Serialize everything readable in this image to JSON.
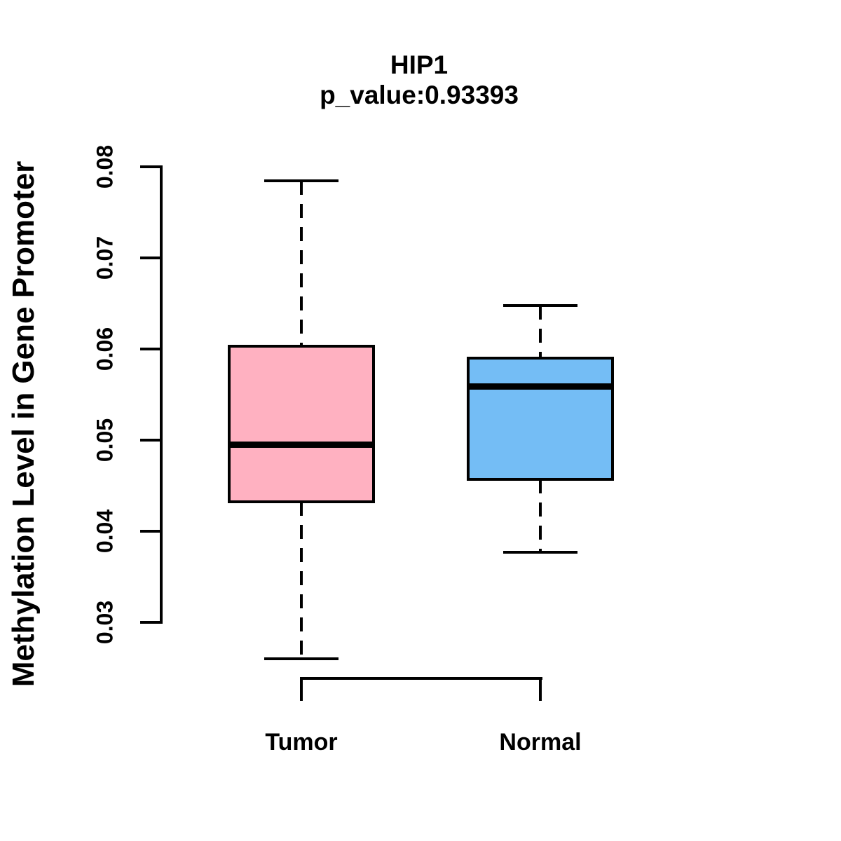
{
  "title": {
    "line1": "HIP1",
    "line2": "p_value:0.93393"
  },
  "chart_data": {
    "type": "boxplot",
    "title": "HIP1",
    "subtitle": "p_value:0.93393",
    "xlabel": "",
    "ylabel": "Methylation Level in Gene Promoter",
    "categories": [
      "Tumor",
      "Normal"
    ],
    "series": [
      {
        "name": "Tumor",
        "whisker_low": 0.026,
        "q1": 0.0432,
        "median": 0.0495,
        "q3": 0.0603,
        "whisker_high": 0.0785,
        "fill_color": "#FFB1C1"
      },
      {
        "name": "Normal",
        "whisker_low": 0.0377,
        "q1": 0.0457,
        "median": 0.0559,
        "q3": 0.059,
        "whisker_high": 0.0648,
        "fill_color": "#74BDF5"
      }
    ],
    "y_ticks": [
      {
        "value": 0.03,
        "label": "0.03"
      },
      {
        "value": 0.04,
        "label": "0.04"
      },
      {
        "value": 0.05,
        "label": "0.05"
      },
      {
        "value": 0.06,
        "label": "0.06"
      },
      {
        "value": 0.07,
        "label": "0.07"
      },
      {
        "value": 0.08,
        "label": "0.08"
      }
    ],
    "ylim": [
      0.026,
      0.0785
    ],
    "grid": false,
    "legend": false,
    "stroke_color": "#000000",
    "background_color": "#FFFFFF",
    "whisker_line_style": "dashed"
  }
}
